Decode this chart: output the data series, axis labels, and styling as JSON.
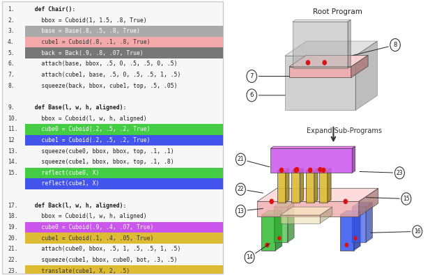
{
  "bg_color": "#ffffff",
  "code_lines": [
    {
      "num": "1.",
      "text": "  def Chair():",
      "bold": true,
      "hl": null
    },
    {
      "num": "2.",
      "text": "    bbox = Cuboid(1, 1.5, .8, True)",
      "bold": false,
      "hl": null
    },
    {
      "num": "3.",
      "text": "    base = Base(.8, .5, .8, True)",
      "bold": false,
      "hl": "gray"
    },
    {
      "num": "4.",
      "text": "    cube1 = Cuboid(.8, .1, .8, True)",
      "bold": false,
      "hl": "pink"
    },
    {
      "num": "5.",
      "text": "    back = Back(.9, .8, .07, True)",
      "bold": false,
      "hl": "darkgray"
    },
    {
      "num": "6.",
      "text": "    attach(base, bbox, .5, 0, .5, .5, 0, .5)",
      "bold": false,
      "hl": null
    },
    {
      "num": "7.",
      "text": "    attach(cube1, base, .5, 0, .5, .5, 1, .5)",
      "bold": false,
      "hl": null
    },
    {
      "num": "8.",
      "text": "    squeeze(back, bbox, cube1, top, .5, .05)",
      "bold": false,
      "hl": null
    },
    {
      "num": "",
      "text": "",
      "bold": false,
      "hl": null
    },
    {
      "num": "9.",
      "text": "  def Base(l, w, h, aligned):",
      "bold": true,
      "hl": null
    },
    {
      "num": "10.",
      "text": "    bbox = Cuboid(l, w, h, aligned)",
      "bold": false,
      "hl": null
    },
    {
      "num": "11.",
      "text": "    cube0 = Cuboid(.2, .5, .2, True)",
      "bold": false,
      "hl": "green"
    },
    {
      "num": "12",
      "text": "    cube1 = Cuboid(.2, .5, .2, True)",
      "bold": false,
      "hl": "blue"
    },
    {
      "num": "13.",
      "text": "    squeeze(cube0, bbox, bbox, top, .1, .1)",
      "bold": false,
      "hl": null
    },
    {
      "num": "14.",
      "text": "    squeeze(cube1, bbox, bbox, top, .1, .8)",
      "bold": false,
      "hl": null
    },
    {
      "num": "15.",
      "text": "    reflect(cube0, X)",
      "bold": false,
      "hl": "green"
    },
    {
      "num": "",
      "text": "    reflect(cube1, X)",
      "bold": false,
      "hl": "blue"
    },
    {
      "num": "",
      "text": "",
      "bold": false,
      "hl": null
    },
    {
      "num": "17.",
      "text": "  def Back(l, w, h, aligned):",
      "bold": true,
      "hl": null
    },
    {
      "num": "18.",
      "text": "    bbox = Cuboid(l, w, h, aligned)",
      "bold": false,
      "hl": null
    },
    {
      "num": "19.",
      "text": "    cube0 = Cuboid(.9, .4, .07, True)",
      "bold": false,
      "hl": "purple"
    },
    {
      "num": "20.",
      "text": "    cube1 = Cuboid(.1, .4, .05, True)",
      "bold": false,
      "hl": "yellow"
    },
    {
      "num": "21.",
      "text": "    attach(cube0, bbox, .5, 1, .5, .5, 1, .5)",
      "bold": false,
      "hl": null
    },
    {
      "num": "22.",
      "text": "    squeeze(cube1, bbox, cube0, bot, .3, .5)",
      "bold": false,
      "hl": null
    },
    {
      "num": "23.",
      "text": "    translate(cube1, X, 2, .5)",
      "bold": false,
      "hl": "yellow"
    }
  ],
  "hc_map": {
    "gray": [
      "#aaaaaa",
      "#ffffff"
    ],
    "pink": [
      "#f4aaaa",
      "#333333"
    ],
    "darkgray": [
      "#777777",
      "#ffffff"
    ],
    "green": [
      "#44cc44",
      "#ffffff"
    ],
    "blue": [
      "#4455ee",
      "#ffffff"
    ],
    "purple": [
      "#cc55ee",
      "#ffffff"
    ],
    "yellow": [
      "#ddbb33",
      "#333333"
    ]
  }
}
